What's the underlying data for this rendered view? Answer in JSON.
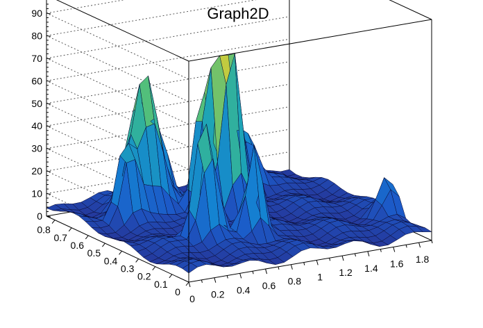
{
  "chart_data": {
    "type": "surface",
    "title": "Graph2D",
    "xlabel": "",
    "ylabel": "",
    "zlabel": "",
    "xlim": [
      0,
      1.9
    ],
    "ylim": [
      0,
      0.85
    ],
    "zlim": [
      0,
      98
    ],
    "x_ticks": [
      "0",
      "0.2",
      "0.4",
      "0.6",
      "0.8",
      "1",
      "1.2",
      "1.4",
      "1.6",
      "1.8"
    ],
    "y_ticks": [
      "0",
      "0.1",
      "0.2",
      "0.3",
      "0.4",
      "0.5",
      "0.6",
      "0.7",
      "0.8"
    ],
    "z_ticks": [
      "0",
      "10",
      "20",
      "30",
      "40",
      "50",
      "60",
      "70",
      "80",
      "90"
    ],
    "grid": true,
    "colormap": "viridis",
    "surface_grid": {
      "nx": 28,
      "ny": 22
    },
    "peaks": [
      {
        "x": 1.0,
        "y": 0.52,
        "z": 85,
        "width": 0.07
      },
      {
        "x": 0.86,
        "y": 0.56,
        "z": 66,
        "width": 0.06
      },
      {
        "x": 0.52,
        "y": 0.66,
        "z": 64,
        "width": 0.1
      },
      {
        "x": 0.52,
        "y": 0.3,
        "z": 56,
        "width": 0.07
      },
      {
        "x": 0.82,
        "y": 0.24,
        "z": 46,
        "width": 0.06
      },
      {
        "x": 1.1,
        "y": 0.7,
        "z": 38,
        "width": 0.07
      },
      {
        "x": 0.3,
        "y": 0.6,
        "z": 34,
        "width": 0.06
      },
      {
        "x": 1.38,
        "y": 0.72,
        "z": 30,
        "width": 0.08
      },
      {
        "x": 0.7,
        "y": 0.72,
        "z": 30,
        "width": 0.06
      },
      {
        "x": 1.85,
        "y": 0.22,
        "z": 18,
        "width": 0.07
      }
    ],
    "baseline": 2
  }
}
